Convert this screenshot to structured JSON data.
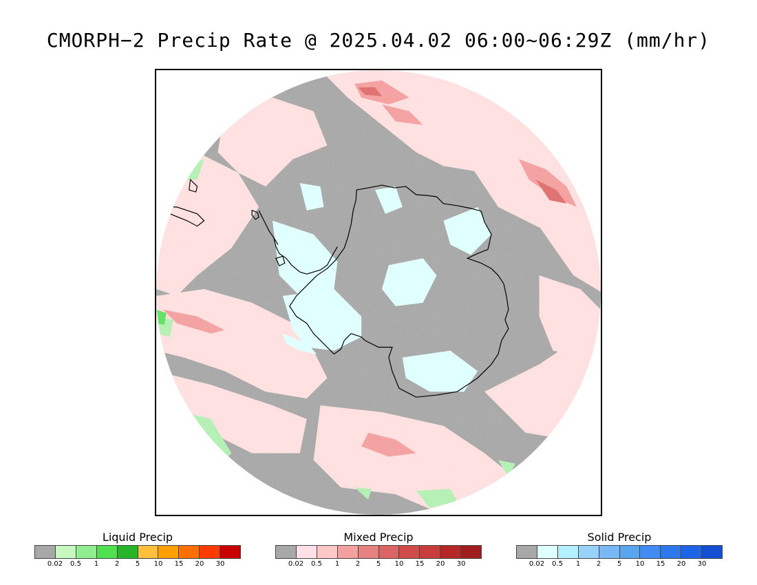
{
  "title": "CMORPH−2 Precip Rate @ 2025.04.02 06:00~06:29Z (mm/hr)",
  "map": {
    "projection": "south-polar-stereographic",
    "region": "Antarctica / Southern Ocean",
    "colors": {
      "no_precip": "#a8a8a8",
      "mixed_light": "#ffe0e0",
      "mixed_mid": "#f4a0a0",
      "mixed_heavy": "#e07070",
      "solid_light": "#e0ffff",
      "liquid_light": "#b4f0b4",
      "liquid_mid": "#64e064",
      "coast": "#000000"
    }
  },
  "legends": [
    {
      "title": "Liquid Precip",
      "colors": [
        "#a8a8a8",
        "#c8f8c0",
        "#90ee90",
        "#50e050",
        "#28b428",
        "#ffbe3c",
        "#ffa000",
        "#ff6e00",
        "#ff3c00",
        "#c80000"
      ],
      "ticks": [
        "0.02",
        "0.5",
        "1",
        "2",
        "5",
        "10",
        "15",
        "20",
        "30"
      ]
    },
    {
      "title": "Mixed Precip",
      "colors": [
        "#a8a8a8",
        "#ffe0e6",
        "#ffc8c8",
        "#f4a0a0",
        "#e88282",
        "#dc6464",
        "#d24b4b",
        "#c83c3c",
        "#b42828",
        "#a01e1e"
      ],
      "ticks": [
        "0.02",
        "0.5",
        "1",
        "2",
        "5",
        "10",
        "15",
        "20",
        "30"
      ]
    },
    {
      "title": "Solid Precip",
      "colors": [
        "#a8a8a8",
        "#e0ffff",
        "#b4f0ff",
        "#96d2fa",
        "#78b9f5",
        "#5aa5f0",
        "#418cf0",
        "#2d78eb",
        "#1e64e6",
        "#1450d2"
      ],
      "ticks": [
        "0.02",
        "0.5",
        "1",
        "2",
        "5",
        "10",
        "15",
        "20",
        "30"
      ]
    }
  ]
}
